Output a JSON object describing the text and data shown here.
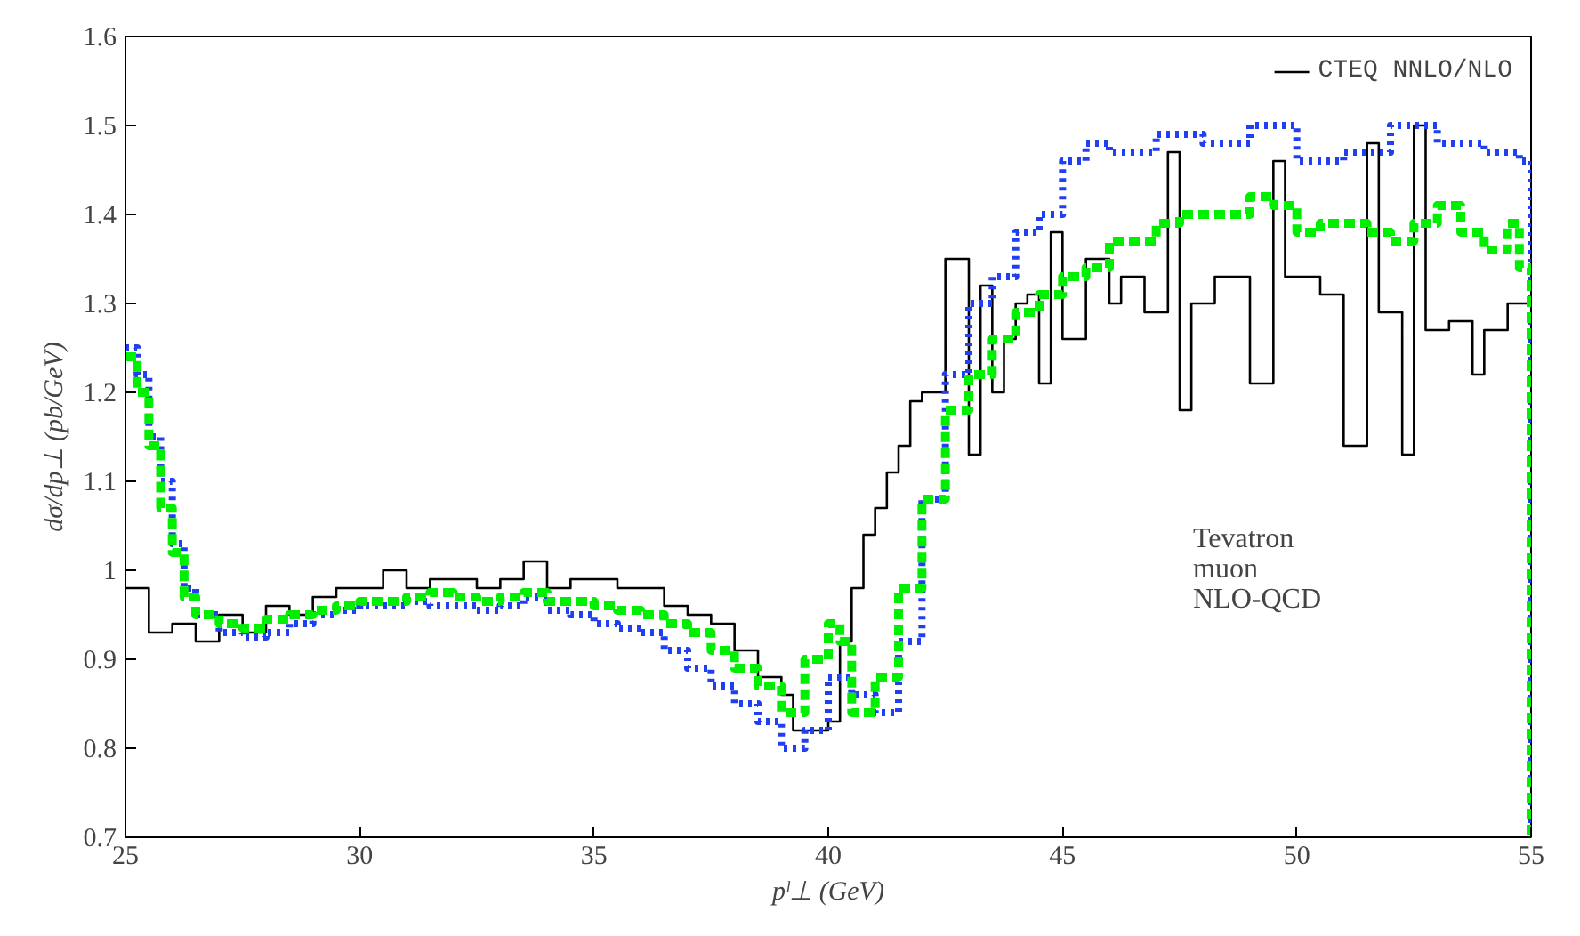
{
  "chart_data": {
    "type": "step",
    "xlabel": "pˡ⊥ (GeV)",
    "ylabel": "dσ/dp⊥ (pb/GeV)",
    "xlim": [
      25,
      55
    ],
    "xticks": [
      25,
      30,
      35,
      40,
      45,
      50,
      55
    ],
    "ylim": [
      0.7,
      1.6
    ],
    "yticks": [
      0.7,
      0.8,
      0.9,
      1,
      1.1,
      1.2,
      1.3,
      1.4,
      1.5,
      1.6
    ],
    "grid": false,
    "legend": "top right",
    "annotations": [
      "Tevatron\nmuon\nNLO-QCD"
    ],
    "series": [
      {
        "name": "CTEQ NNLO/NLO",
        "color": "#000000",
        "line_style": "solid",
        "x": [
          25,
          25.5,
          26,
          26.5,
          27,
          27.5,
          28,
          28.5,
          29,
          29.5,
          30,
          30.5,
          31,
          31.5,
          32,
          32.5,
          33,
          33.5,
          34,
          34.5,
          35,
          35.5,
          36,
          36.5,
          37,
          37.5,
          38,
          38.5,
          39,
          39.25,
          40,
          40.25,
          40.5,
          40.75,
          41,
          41.25,
          41.5,
          41.75,
          42,
          42.5,
          43,
          43.25,
          43.5,
          43.75,
          44,
          44.25,
          44.5,
          44.75,
          45,
          45.5,
          46,
          46.25,
          46.75,
          47.25,
          47.5,
          47.75,
          48.25,
          49,
          49.5,
          49.75,
          50.5,
          51,
          51.5,
          51.75,
          52.25,
          52.5,
          52.75,
          53.25,
          53.75,
          54,
          54.5,
          55
        ],
        "values": [
          0.98,
          0.93,
          0.94,
          0.92,
          0.95,
          0.93,
          0.96,
          0.95,
          0.97,
          0.98,
          0.98,
          1.0,
          0.98,
          0.99,
          0.99,
          0.98,
          0.99,
          1.01,
          0.98,
          0.99,
          0.99,
          0.98,
          0.98,
          0.96,
          0.95,
          0.94,
          0.91,
          0.88,
          0.86,
          0.82,
          0.83,
          0.92,
          0.98,
          1.04,
          1.07,
          1.11,
          1.14,
          1.19,
          1.2,
          1.35,
          1.13,
          1.32,
          1.2,
          1.26,
          1.3,
          1.31,
          1.21,
          1.38,
          1.26,
          1.35,
          1.3,
          1.33,
          1.29,
          1.47,
          1.18,
          1.3,
          1.33,
          1.21,
          1.46,
          1.33,
          1.31,
          1.14,
          1.48,
          1.29,
          1.13,
          1.5,
          1.27,
          1.28,
          1.22,
          1.27,
          1.3,
          1.3
        ]
      },
      {
        "color": "#1f3ff0",
        "line_style": "dotted",
        "x": [
          25,
          25.25,
          25.5,
          25.75,
          26,
          26.25,
          26.5,
          27,
          27.5,
          28,
          28.5,
          29,
          29.5,
          30,
          30.5,
          31,
          31.5,
          32,
          32.5,
          33,
          33.5,
          34,
          34.5,
          35,
          35.5,
          36,
          36.5,
          37,
          37.5,
          38,
          38.5,
          39,
          39.5,
          40,
          40.5,
          41,
          41.5,
          42,
          42.5,
          43,
          43.5,
          44,
          44.5,
          45,
          45.5,
          46,
          47,
          48,
          49,
          50,
          51,
          52,
          53,
          54,
          54.75,
          55
        ],
        "values": [
          1.25,
          1.22,
          1.15,
          1.1,
          1.03,
          0.98,
          0.95,
          0.93,
          0.925,
          0.93,
          0.94,
          0.95,
          0.955,
          0.96,
          0.96,
          0.965,
          0.96,
          0.96,
          0.955,
          0.96,
          0.97,
          0.955,
          0.95,
          0.94,
          0.935,
          0.93,
          0.91,
          0.89,
          0.87,
          0.85,
          0.83,
          0.8,
          0.82,
          0.88,
          0.86,
          0.84,
          0.92,
          1.08,
          1.22,
          1.3,
          1.33,
          1.38,
          1.4,
          1.46,
          1.48,
          1.47,
          1.49,
          1.48,
          1.5,
          1.46,
          1.47,
          1.5,
          1.48,
          1.47,
          1.46,
          0.7
        ]
      },
      {
        "color": "#00ee00",
        "line_style": "dashed",
        "x": [
          25,
          25.25,
          25.5,
          25.75,
          26,
          26.25,
          26.5,
          27,
          27.5,
          28,
          28.5,
          29,
          29.5,
          30,
          30.5,
          31,
          31.5,
          32,
          32.5,
          33,
          33.5,
          34,
          34.5,
          35,
          35.5,
          36,
          36.5,
          37,
          37.5,
          38,
          38.5,
          39,
          39.5,
          40,
          40.25,
          40.5,
          41,
          41.5,
          42,
          42.5,
          43,
          43.5,
          44,
          44.5,
          45,
          45.5,
          46,
          46.5,
          47,
          47.5,
          48,
          48.5,
          49,
          49.5,
          50,
          50.5,
          51,
          51.5,
          52,
          52.5,
          53,
          53.5,
          54,
          54.5,
          54.75,
          55
        ],
        "values": [
          1.24,
          1.2,
          1.14,
          1.07,
          1.02,
          0.97,
          0.95,
          0.94,
          0.935,
          0.945,
          0.95,
          0.955,
          0.96,
          0.965,
          0.965,
          0.97,
          0.975,
          0.97,
          0.965,
          0.97,
          0.975,
          0.965,
          0.965,
          0.96,
          0.955,
          0.95,
          0.94,
          0.93,
          0.91,
          0.89,
          0.87,
          0.84,
          0.9,
          0.94,
          0.92,
          0.84,
          0.88,
          0.98,
          1.08,
          1.18,
          1.22,
          1.26,
          1.29,
          1.31,
          1.33,
          1.34,
          1.37,
          1.37,
          1.39,
          1.4,
          1.4,
          1.4,
          1.42,
          1.41,
          1.38,
          1.39,
          1.39,
          1.38,
          1.37,
          1.39,
          1.41,
          1.38,
          1.36,
          1.39,
          1.34,
          0.7
        ]
      }
    ]
  }
}
